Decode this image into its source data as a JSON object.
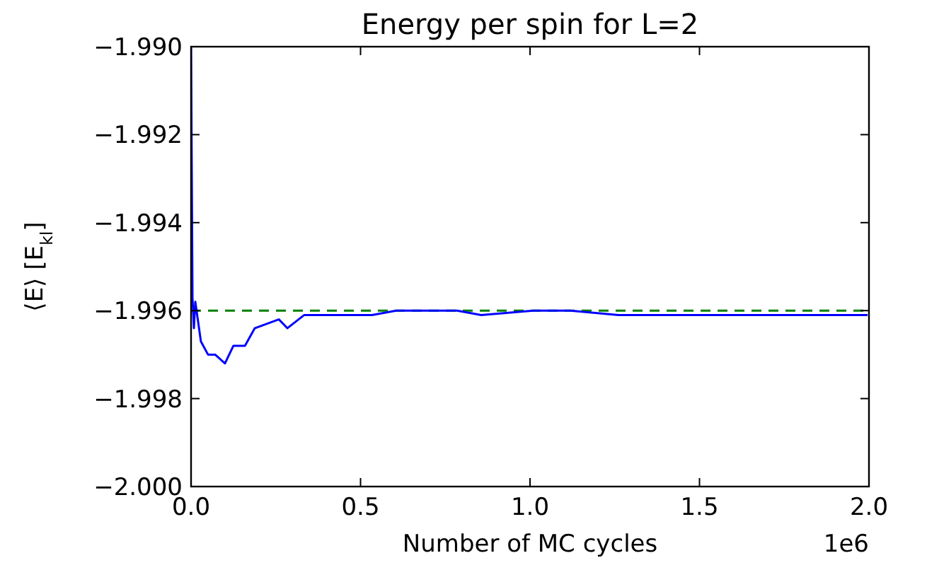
{
  "chart_data": {
    "type": "line",
    "title": "Energy per spin for L=2",
    "xlabel": "Number of MC cycles",
    "ylabel": "⟨E⟩ [E$_{kl}$]",
    "annotations": [
      "1e6"
    ],
    "xlim": [
      0,
      2
    ],
    "xticks": [
      {
        "value": 0,
        "label": "0.0"
      },
      0.5,
      {
        "value": 1,
        "label": "1.0"
      },
      1.5,
      {
        "value": 2,
        "label": "2.0"
      }
    ],
    "ylim": [
      -2.0,
      -1.99
    ],
    "yticks": [
      {
        "value": -2.0,
        "label": "−2.000"
      },
      {
        "value": -1.998,
        "label": "−1.998"
      },
      {
        "value": -1.996,
        "label": "−1.996"
      },
      {
        "value": -1.994,
        "label": "−1.994"
      },
      {
        "value": -1.992,
        "label": "−1.992"
      },
      {
        "value": -1.99,
        "label": "−1.990"
      }
    ],
    "grid": false,
    "line_style": "solid",
    "ref_lines": [
      {
        "axis": "y",
        "value": -1.996,
        "color": "#008000",
        "line_style": "dashed"
      }
    ],
    "series": [
      {
        "color": "#0000ff",
        "x": [
          0,
          0.0042,
          0.0084,
          0.0125,
          0.029,
          0.05,
          0.071,
          0.1,
          0.125,
          0.159,
          0.188,
          0.259,
          0.284,
          0.334,
          0.397,
          0.468,
          0.534,
          0.605,
          0.785,
          0.856,
          1.01,
          1.119,
          1.261,
          1.399,
          1.511,
          1.678,
          1.996
        ],
        "values": [
          -1.99,
          -1.9957,
          -1.9964,
          -1.9958,
          -1.9967,
          -1.997,
          -1.997,
          -1.9972,
          -1.9968,
          -1.9968,
          -1.9964,
          -1.9962,
          -1.9964,
          -1.9961,
          -1.9961,
          -1.9961,
          -1.9961,
          -1.996,
          -1.996,
          -1.9961,
          -1.996,
          -1.996,
          -1.9961,
          -1.9961,
          -1.9961,
          -1.9961,
          -1.9961
        ]
      }
    ]
  }
}
